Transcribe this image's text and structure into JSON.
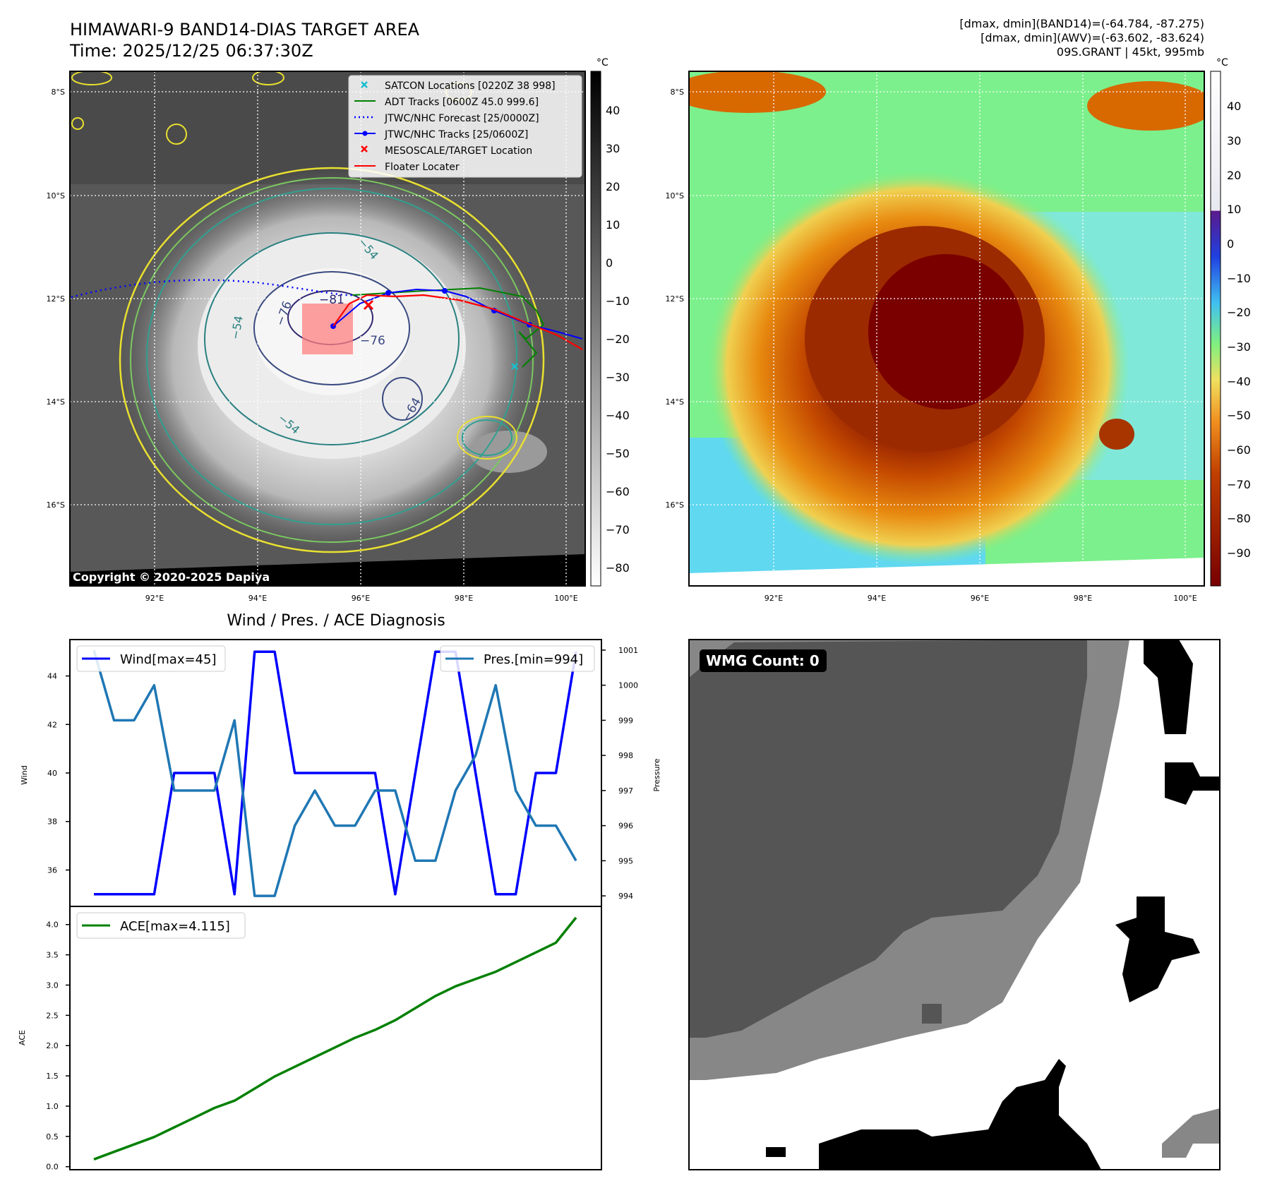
{
  "header": {
    "title": "HIMAWARI-9 BAND14-DIAS TARGET AREA",
    "time": "Time: 2025/12/25 06:37:30Z",
    "info_line1": "[dmax, dmin](BAND14)=(-64.784, -87.275)",
    "info_line2": "[dmax, dmin](AWV)=(-63.602, -83.624)",
    "info_line3": "09S.GRANT | 45kt, 995mb"
  },
  "map_axes": {
    "lat_labels": [
      "8°S",
      "10°S",
      "12°S",
      "14°S",
      "16°S"
    ],
    "lon_labels": [
      "92°E",
      "94°E",
      "96°E",
      "98°E",
      "100°E"
    ]
  },
  "ir_panel": {
    "copyright": "Copyright © 2020-2025 Dapiya",
    "colorbar_unit": "°C",
    "colorbar_ticks": [
      "40",
      "30",
      "20",
      "10",
      "0",
      "−10",
      "−20",
      "−30",
      "−40",
      "−50",
      "−60",
      "−70",
      "−80"
    ],
    "contour_labels": [
      "−81",
      "−76",
      "−76",
      "−64",
      "−54",
      "−54",
      "−54"
    ],
    "legend": [
      {
        "label": "SATCON Locations [0220Z 38 998]",
        "marker": "x",
        "color": "#17becf"
      },
      {
        "label": "ADT Tracks [0600Z 45.0 999.6]",
        "marker": "line",
        "color": "#008000"
      },
      {
        "label": "JTWC/NHC Forecast [25/0000Z]",
        "marker": "dotted",
        "color": "#0000ff"
      },
      {
        "label": "JTWC/NHC Tracks [25/0600Z]",
        "marker": "line-dot",
        "color": "#0000ff"
      },
      {
        "label": "MESOSCALE/TARGET Location",
        "marker": "x",
        "color": "#ff0000"
      },
      {
        "label": "Floater Locater",
        "marker": "line",
        "color": "#ff0000"
      }
    ]
  },
  "awv_panel": {
    "colorbar_unit": "°C",
    "colorbar_ticks": [
      "40",
      "30",
      "20",
      "10",
      "0",
      "−10",
      "−20",
      "−30",
      "−40",
      "−50",
      "−60",
      "−70",
      "−80",
      "−90"
    ]
  },
  "wmg_panel": {
    "badge": "WMG Count: 0"
  },
  "chart_data": [
    {
      "type": "line",
      "title": "Wind / Pres. / ACE Diagnosis",
      "ylabel": "Wind",
      "ylabel_right": "Pressure",
      "x": [
        1,
        2,
        3,
        4,
        5,
        6,
        7,
        8,
        9,
        10,
        11,
        12,
        13,
        14,
        15,
        16,
        17,
        18,
        19,
        20,
        21,
        22,
        23,
        24,
        25
      ],
      "series": [
        {
          "name": "Wind[max=45]",
          "axis": "left",
          "color": "#0000ff",
          "values": [
            35,
            35,
            35,
            35,
            40,
            40,
            40,
            35,
            45,
            45,
            40,
            40,
            40,
            40,
            40,
            35,
            40,
            45,
            45,
            40,
            35,
            35,
            40,
            40,
            45
          ]
        },
        {
          "name": "Pres.[min=994]",
          "axis": "right",
          "color": "#1f77b4",
          "values": [
            1001,
            999,
            999,
            1000,
            997,
            997,
            997,
            999,
            994,
            994,
            996,
            997,
            996,
            996,
            997,
            997,
            995,
            995,
            997,
            998,
            1000,
            997,
            996,
            996,
            995
          ]
        }
      ],
      "ylim": [
        34.5,
        45.5
      ],
      "ylim_right": [
        993.7,
        1001.3
      ],
      "yticks": [
        "36",
        "38",
        "40",
        "42",
        "44"
      ],
      "yticks_right": [
        "994",
        "995",
        "996",
        "997",
        "998",
        "999",
        "1000",
        "1001"
      ]
    },
    {
      "type": "line",
      "ylabel": "ACE",
      "x": [
        1,
        2,
        3,
        4,
        5,
        6,
        7,
        8,
        9,
        10,
        11,
        12,
        13,
        14,
        15,
        16,
        17,
        18,
        19,
        20,
        21,
        22,
        23,
        24,
        25
      ],
      "series": [
        {
          "name": "ACE[max=4.115]",
          "color": "#008000",
          "values": [
            0.122,
            0.245,
            0.367,
            0.49,
            0.65,
            0.81,
            0.97,
            1.09,
            1.29,
            1.49,
            1.65,
            1.81,
            1.97,
            2.13,
            2.26,
            2.42,
            2.62,
            2.82,
            2.98,
            3.1,
            3.22,
            3.38,
            3.54,
            3.7,
            4.115
          ]
        }
      ],
      "ylim": [
        -0.05,
        4.3
      ],
      "yticks": [
        "0.0",
        "0.5",
        "1.0",
        "1.5",
        "2.0",
        "2.5",
        "3.0",
        "3.5",
        "4.0"
      ]
    }
  ]
}
